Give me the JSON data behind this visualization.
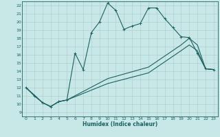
{
  "xlabel": "Humidex (Indice chaleur)",
  "bg_color": "#c8e8e8",
  "grid_color": "#b0d0d0",
  "line_color": "#1a6060",
  "xlim": [
    -0.5,
    23.5
  ],
  "ylim": [
    8.5,
    22.5
  ],
  "xticks": [
    0,
    1,
    2,
    3,
    4,
    5,
    6,
    7,
    8,
    9,
    10,
    11,
    12,
    13,
    14,
    15,
    16,
    17,
    18,
    19,
    20,
    21,
    22,
    23
  ],
  "yticks": [
    9,
    10,
    11,
    12,
    13,
    14,
    15,
    16,
    17,
    18,
    19,
    20,
    21,
    22
  ],
  "main_x": [
    0,
    1,
    2,
    3,
    4,
    5,
    6,
    7,
    8,
    9,
    10,
    11,
    12,
    13,
    14,
    15,
    16,
    17,
    18,
    19,
    20,
    21,
    22,
    23
  ],
  "main_y": [
    12,
    11,
    10.2,
    9.7,
    10.3,
    10.5,
    16.2,
    14.2,
    18.7,
    20.0,
    22.3,
    21.4,
    19.1,
    19.5,
    19.8,
    21.7,
    21.7,
    20.4,
    19.3,
    18.2,
    18.1,
    16.2,
    14.3,
    14.2
  ],
  "lower1_x": [
    0,
    2,
    3,
    4,
    5,
    10,
    15,
    19,
    20,
    21,
    22,
    23
  ],
  "lower1_y": [
    12,
    10.2,
    9.7,
    10.3,
    10.5,
    13.1,
    14.5,
    17.2,
    18.0,
    17.2,
    14.3,
    14.2
  ],
  "lower2_x": [
    0,
    2,
    3,
    4,
    5,
    10,
    15,
    19,
    20,
    21,
    22,
    23
  ],
  "lower2_y": [
    12,
    10.2,
    9.7,
    10.3,
    10.5,
    12.5,
    13.8,
    16.5,
    17.2,
    16.5,
    14.3,
    14.2
  ]
}
